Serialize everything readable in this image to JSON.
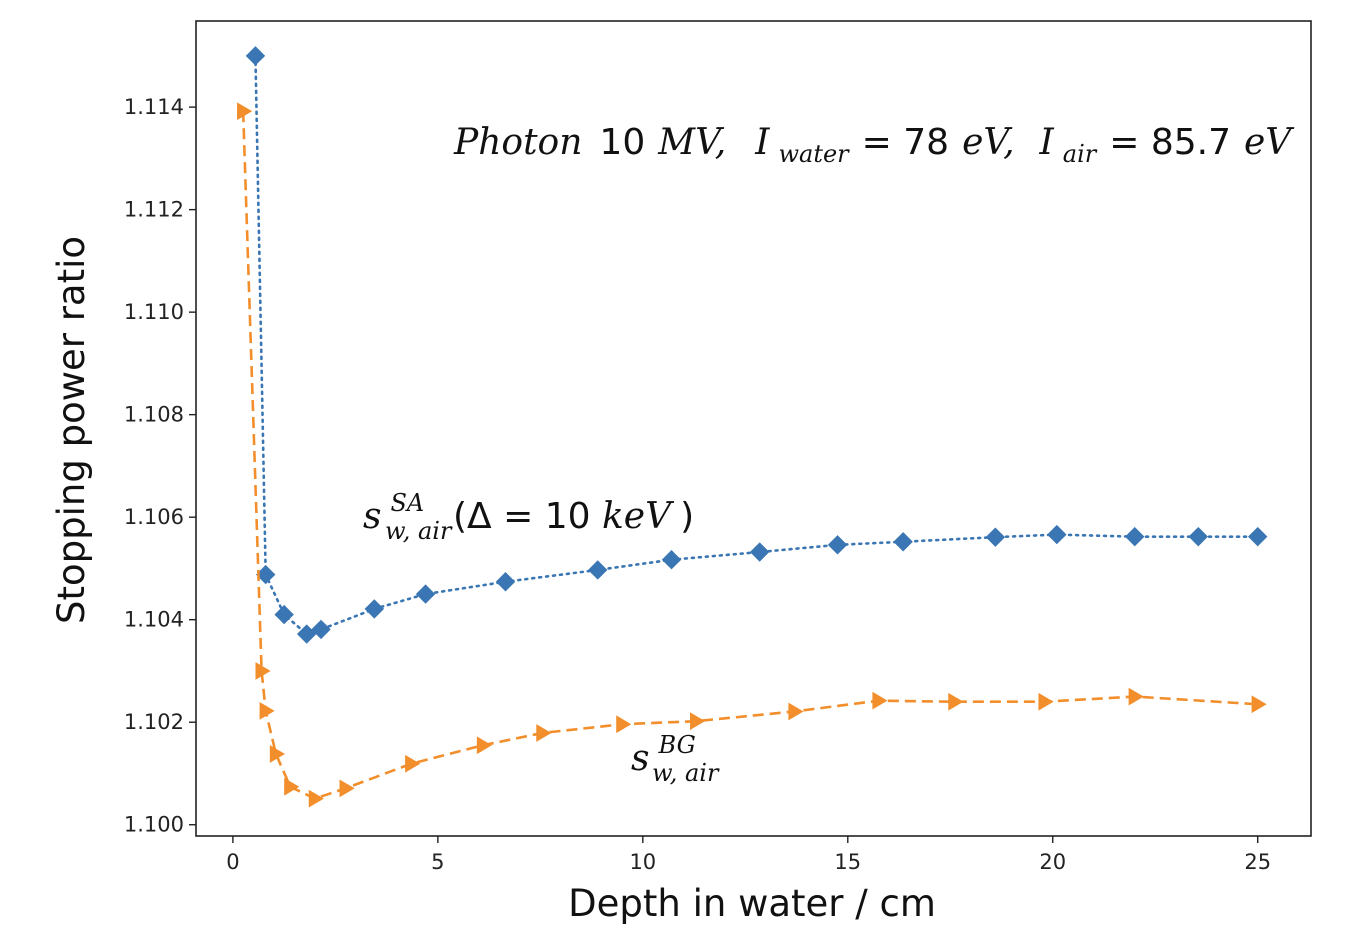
{
  "chart_data": {
    "type": "line",
    "title": "",
    "xlabel": "Depth in water / cm",
    "ylabel": "Stopping power ratio",
    "xlim": [
      -0.9,
      26.3
    ],
    "ylim": [
      1.09978,
      1.11568
    ],
    "xticks": [
      0,
      5,
      10,
      15,
      20,
      25
    ],
    "xtick_labels": [
      "0",
      "5",
      "10",
      "15",
      "20",
      "25"
    ],
    "yticks": [
      1.1,
      1.102,
      1.104,
      1.106,
      1.108,
      1.11,
      1.112,
      1.114
    ],
    "ytick_labels": [
      "1.100",
      "1.102",
      "1.104",
      "1.106",
      "1.108",
      "1.110",
      "1.112",
      "1.114"
    ],
    "grid": false,
    "legend": "none",
    "annotations": {
      "main": {
        "photon": "Photon",
        "energy": "10",
        "mv": "MV,",
        "i1": "I",
        "i1_sub": "water",
        "i1_eq": "= 78",
        "ev1": "eV,",
        "i2": "I",
        "i2_sub": "air",
        "i2_eq": "= 85.7",
        "ev2": "eV"
      },
      "sa": {
        "s": "s",
        "sup": "SA",
        "sub": "w, air",
        "open": "(Δ = 10 ",
        "unit": "keV",
        "close": ")"
      },
      "bg": {
        "s": "s",
        "sup": "BG",
        "sub": "w, air"
      }
    },
    "series": [
      {
        "color": "#3a76b3",
        "linestyle": "dotted",
        "marker": "diamond",
        "x": [
          0.55,
          0.8,
          1.25,
          1.8,
          2.15,
          3.45,
          4.7,
          6.65,
          8.9,
          10.7,
          12.85,
          14.75,
          16.35,
          18.6,
          20.1,
          22.0,
          23.55,
          25.0
        ],
        "y": [
          1.115,
          1.10488,
          1.1041,
          1.10372,
          1.10381,
          1.10421,
          1.1045,
          1.10474,
          1.10497,
          1.10517,
          1.10532,
          1.10546,
          1.10552,
          1.10561,
          1.10566,
          1.10562,
          1.10562,
          1.10562
        ]
      },
      {
        "color": "#f28e2b",
        "linestyle": "dashed",
        "marker": "triangle-right",
        "x": [
          0.25,
          0.7,
          0.8,
          1.05,
          1.4,
          2.0,
          2.75,
          4.35,
          6.1,
          7.55,
          9.5,
          11.3,
          13.7,
          15.75,
          17.6,
          19.8,
          22.0,
          25.0
        ],
        "y": [
          1.11392,
          1.103,
          1.10222,
          1.10138,
          1.10074,
          1.10051,
          1.10071,
          1.10119,
          1.10155,
          1.10179,
          1.10196,
          1.10202,
          1.10221,
          1.10242,
          1.1024,
          1.1024,
          1.1025,
          1.10235
        ]
      }
    ]
  }
}
